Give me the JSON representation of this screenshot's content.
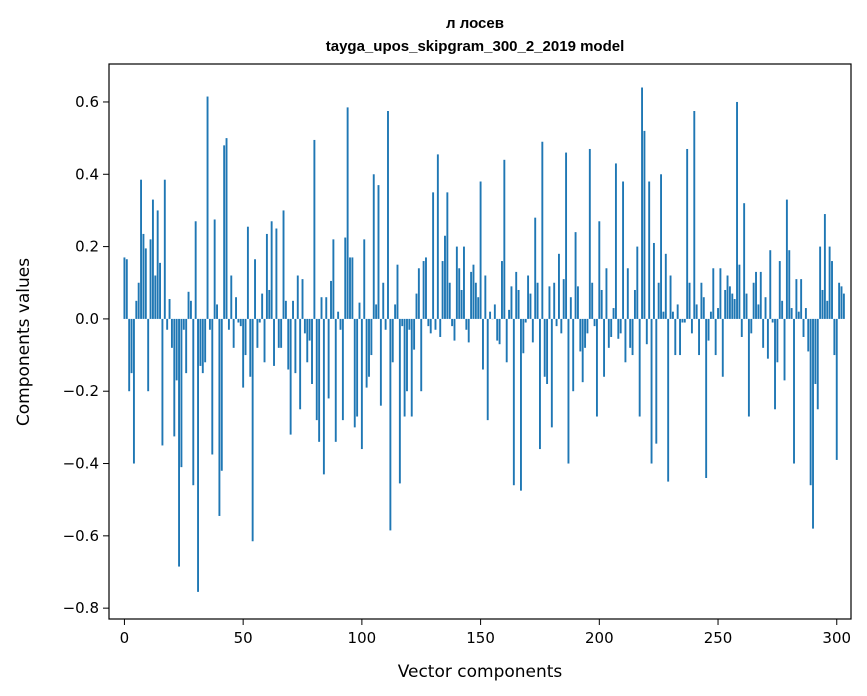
{
  "chart_data": {
    "type": "bar",
    "title": "л лосев",
    "subtitle": "tayga_upos_skipgram_300_2_2019 model",
    "xlabel": "Vector components",
    "ylabel": "Components values",
    "xlim": [
      -6.5,
      306
    ],
    "ylim": [
      -0.83,
      0.705
    ],
    "xticks": [
      0,
      50,
      100,
      150,
      200,
      250,
      300
    ],
    "yticks": [
      -0.8,
      -0.6,
      -0.4,
      -0.2,
      0.0,
      0.2,
      0.4,
      0.6
    ],
    "ytick_labels": [
      "−0.8",
      "−0.6",
      "−0.4",
      "−0.2",
      "0.0",
      "0.2",
      "0.4",
      "0.6"
    ],
    "xtick_labels": [
      "0",
      "50",
      "100",
      "150",
      "200",
      "250",
      "300"
    ],
    "bar_color": "#1f77b4",
    "grid": false,
    "values": [
      0.17,
      0.165,
      -0.2,
      -0.15,
      -0.4,
      0.05,
      0.1,
      0.385,
      0.235,
      0.195,
      -0.2,
      0.22,
      0.33,
      0.12,
      0.3,
      0.155,
      -0.35,
      0.385,
      -0.03,
      0.055,
      -0.08,
      -0.325,
      -0.17,
      -0.685,
      -0.41,
      -0.03,
      -0.15,
      0.075,
      0.05,
      -0.46,
      0.27,
      -0.755,
      -0.13,
      -0.15,
      -0.12,
      0.615,
      -0.03,
      -0.375,
      0.275,
      0.04,
      -0.545,
      -0.42,
      0.48,
      0.5,
      -0.03,
      0.12,
      -0.08,
      0.06,
      -0.01,
      -0.02,
      -0.19,
      -0.1,
      0.255,
      -0.16,
      -0.615,
      0.165,
      -0.08,
      -0.01,
      0.07,
      -0.12,
      0.235,
      0.08,
      0.27,
      -0.13,
      0.25,
      -0.08,
      -0.08,
      0.3,
      0.05,
      -0.14,
      -0.32,
      0.05,
      -0.15,
      0.12,
      -0.25,
      0.11,
      -0.04,
      -0.12,
      -0.06,
      -0.18,
      0.495,
      -0.28,
      -0.34,
      0.06,
      -0.43,
      0.06,
      -0.22,
      0.105,
      0.22,
      -0.34,
      0.02,
      -0.03,
      -0.28,
      0.225,
      0.585,
      0.17,
      0.17,
      -0.3,
      -0.27,
      0.045,
      -0.36,
      0.22,
      -0.19,
      -0.16,
      -0.1,
      0.4,
      0.04,
      0.37,
      -0.24,
      0.1,
      -0.03,
      0.575,
      -0.585,
      -0.12,
      0.04,
      0.15,
      -0.455,
      -0.02,
      -0.27,
      -0.2,
      -0.03,
      -0.27,
      -0.085,
      0.07,
      0.14,
      -0.2,
      0.16,
      0.17,
      -0.02,
      -0.04,
      0.35,
      -0.03,
      0.455,
      -0.05,
      0.16,
      0.23,
      0.35,
      0.1,
      -0.02,
      -0.06,
      0.2,
      0.14,
      0.08,
      0.2,
      -0.03,
      -0.065,
      0.13,
      0.15,
      0.1,
      0.06,
      0.38,
      -0.14,
      0.12,
      -0.28,
      0.02,
      0.0,
      0.04,
      -0.06,
      -0.07,
      0.16,
      0.44,
      -0.12,
      0.025,
      0.09,
      -0.46,
      0.13,
      0.08,
      -0.475,
      -0.095,
      -0.01,
      0.12,
      0.07,
      -0.065,
      0.28,
      0.1,
      -0.36,
      0.49,
      -0.16,
      -0.18,
      0.09,
      -0.3,
      0.1,
      -0.02,
      0.18,
      -0.04,
      0.11,
      0.46,
      -0.4,
      0.06,
      -0.2,
      0.24,
      0.09,
      -0.09,
      -0.175,
      -0.08,
      -0.04,
      0.47,
      0.1,
      -0.02,
      -0.27,
      0.27,
      0.08,
      -0.16,
      0.14,
      -0.08,
      -0.05,
      0.03,
      0.43,
      -0.055,
      -0.04,
      0.38,
      -0.12,
      0.14,
      -0.08,
      -0.1,
      0.08,
      0.2,
      -0.27,
      0.64,
      0.52,
      -0.07,
      0.38,
      -0.4,
      0.21,
      -0.345,
      0.1,
      0.4,
      0.02,
      0.18,
      -0.45,
      0.12,
      0.02,
      -0.1,
      0.04,
      -0.1,
      -0.01,
      -0.01,
      0.47,
      0.1,
      -0.04,
      0.575,
      0.04,
      -0.1,
      0.1,
      0.06,
      -0.44,
      -0.06,
      0.02,
      0.14,
      -0.1,
      0.03,
      0.14,
      -0.16,
      0.08,
      0.12,
      0.09,
      0.07,
      0.055,
      0.6,
      0.15,
      -0.05,
      0.32,
      0.07,
      -0.27,
      -0.04,
      0.1,
      0.13,
      0.04,
      0.13,
      -0.08,
      0.06,
      -0.11,
      0.19,
      -0.01,
      -0.25,
      -0.12,
      0.16,
      0.05,
      -0.17,
      0.33,
      0.19,
      0.03,
      -0.4,
      0.11,
      0.02,
      0.11,
      -0.05,
      0.03,
      -0.09,
      -0.46,
      -0.58,
      -0.18,
      -0.25,
      0.2,
      0.08,
      0.29,
      0.05,
      0.2,
      0.16,
      -0.1,
      -0.39,
      0.1,
      0.09,
      0.07
    ]
  }
}
